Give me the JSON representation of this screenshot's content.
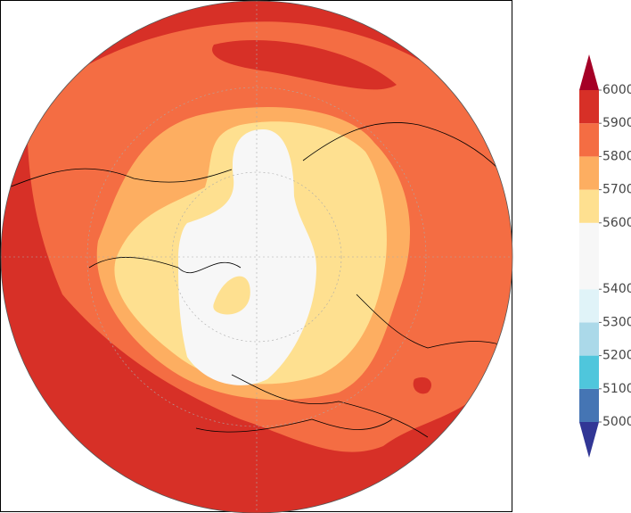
{
  "colorbar": {
    "limits": [
      5000,
      6000
    ],
    "ticks": [
      5000,
      5100,
      5200,
      5300,
      5400,
      5600,
      5700,
      5800,
      5900,
      6000
    ],
    "band_colors": [
      "#4575b4",
      "#4fc6dc",
      "#abd9e9",
      "#e0f3f8",
      "#f7f7f7",
      "#f7f7f7",
      "#fee090",
      "#fdae61",
      "#f46d43",
      "#d73027"
    ],
    "over_color": "#a50026",
    "under_color": "#313695"
  }
}
